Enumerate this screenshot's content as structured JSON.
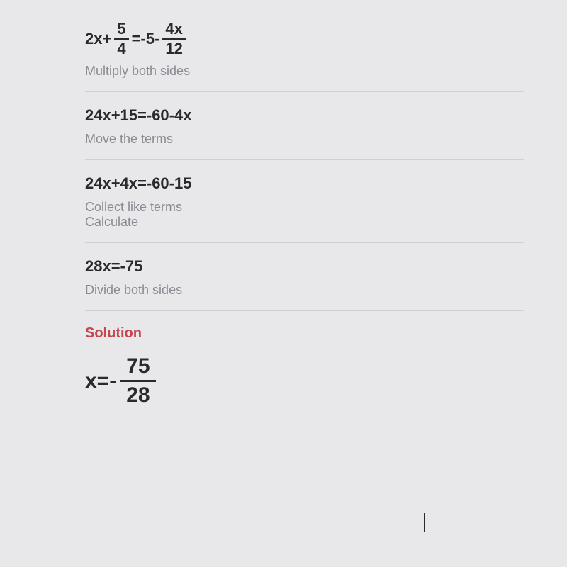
{
  "steps": [
    {
      "equation_parts": {
        "left_coef": "2x+",
        "frac1_num": "5",
        "frac1_den": "4",
        "middle": "=-5-",
        "frac2_num": "4x",
        "frac2_den": "12"
      },
      "instruction": "Multiply both sides"
    },
    {
      "equation_text": "24x+15=-60-4x",
      "instruction": "Move the terms"
    },
    {
      "equation_text": "24x+4x=-60-15",
      "instruction_line1": "Collect like terms",
      "instruction_line2": "Calculate"
    },
    {
      "equation_text": "28x=-75",
      "instruction": "Divide both sides"
    }
  ],
  "solution": {
    "label": "Solution",
    "prefix": "x=-",
    "frac_num": "75",
    "frac_den": "28"
  },
  "colors": {
    "background": "#e8e8ea",
    "text_primary": "#2a2a2c",
    "text_secondary": "#8a8a92",
    "solution_accent": "#c44850",
    "divider": "#d0d0d3"
  }
}
